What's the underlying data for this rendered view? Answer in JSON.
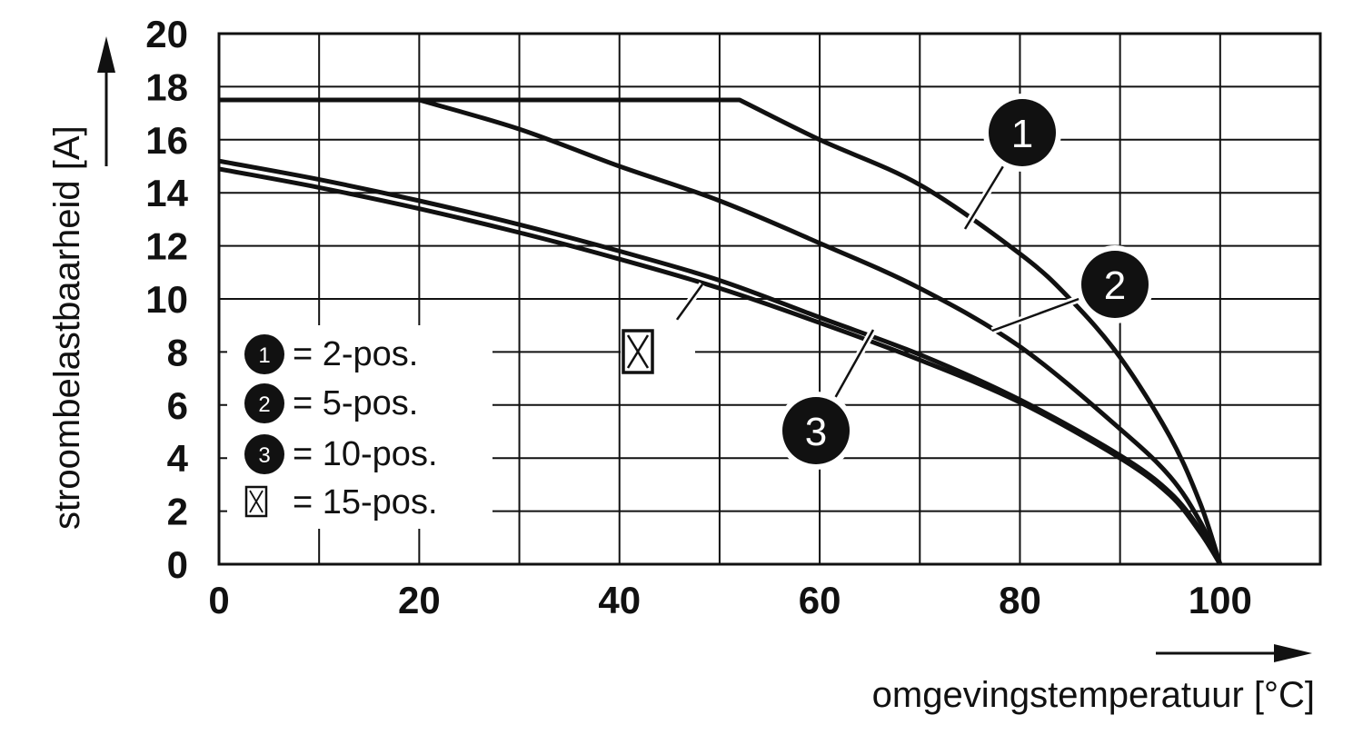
{
  "chart_data": {
    "type": "line",
    "title": "",
    "xlabel": "omgevingstemperatuur [°C]",
    "ylabel": "stroombelastbaarheid [A]",
    "xlim": [
      0,
      110
    ],
    "ylim": [
      0,
      20
    ],
    "xticks": [
      0,
      20,
      40,
      60,
      80,
      100
    ],
    "yticks": [
      0,
      2,
      4,
      6,
      8,
      10,
      12,
      14,
      16,
      18,
      20
    ],
    "grid": true,
    "series": [
      {
        "id": "1",
        "x": [
          0,
          52,
          60,
          70,
          80,
          85,
          90,
          95,
          98,
          100
        ],
        "y": [
          17.5,
          17.5,
          16.0,
          14.3,
          11.7,
          10.0,
          7.8,
          4.8,
          2.3,
          0
        ]
      },
      {
        "id": "2",
        "x": [
          0,
          20,
          30,
          40,
          50,
          60,
          70,
          80,
          90,
          95,
          98,
          100
        ],
        "y": [
          17.5,
          17.5,
          16.4,
          15.0,
          13.7,
          12.1,
          10.4,
          8.2,
          5.1,
          3.3,
          1.6,
          0
        ]
      },
      {
        "id": "3",
        "x": [
          0,
          10,
          20,
          30,
          40,
          50,
          60,
          70,
          80,
          90,
          95,
          98,
          100
        ],
        "y": [
          15.2,
          14.5,
          13.7,
          12.8,
          11.8,
          10.7,
          9.3,
          7.9,
          6.2,
          4.1,
          2.7,
          1.3,
          0
        ]
      },
      {
        "id": "15",
        "x": [
          0,
          10,
          20,
          30,
          40,
          50,
          60,
          70,
          80,
          90,
          95,
          98,
          100
        ],
        "y": [
          14.9,
          14.2,
          13.4,
          12.5,
          11.5,
          10.4,
          9.1,
          7.7,
          6.1,
          4.0,
          2.6,
          1.2,
          0
        ]
      }
    ],
    "legend": {
      "position": "bottom-left",
      "items": [
        {
          "marker": "1",
          "label": "= 2-pos."
        },
        {
          "marker": "2",
          "label": "= 5-pos."
        },
        {
          "marker": "3",
          "label": "= 10-pos."
        },
        {
          "marker": "crossed-box-icon",
          "label": "= 15-pos."
        }
      ]
    },
    "badges": [
      {
        "text": "1",
        "series": "1"
      },
      {
        "text": "2",
        "series": "2"
      },
      {
        "text": "3",
        "series": "3"
      },
      {
        "marker": "crossed-box-icon",
        "series": "15"
      }
    ]
  }
}
